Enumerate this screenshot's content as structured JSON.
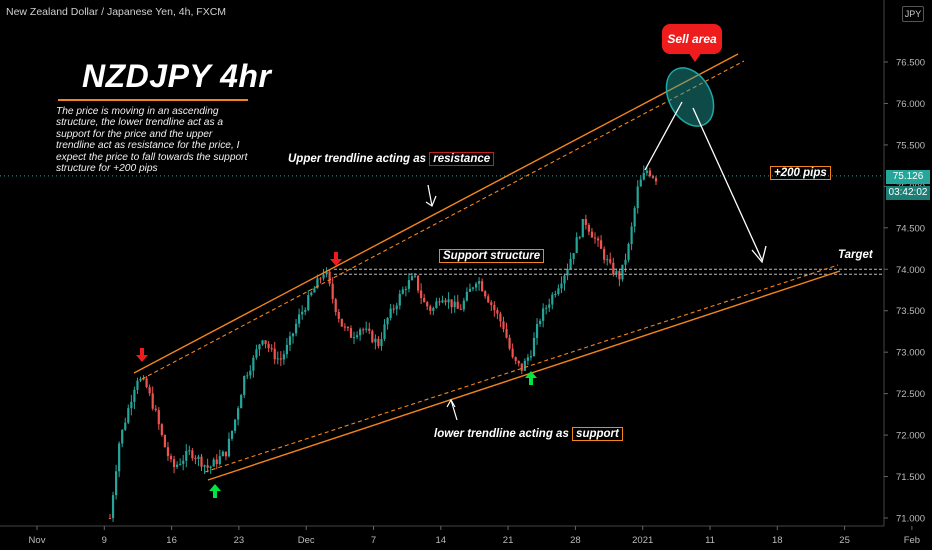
{
  "header": {
    "symbol_title": "New Zealand Dollar / Japanese Yen, 4h, FXCM",
    "currency_badge": "JPY"
  },
  "annotations": {
    "main_title": "NZDJPY 4hr",
    "description": "The price is moving in an ascending structure, the lower trendline act as a support for the price and the upper trendline act as resistance for the price, I expect the price to fall towards the support structure for +200 pips",
    "upper_prefix": "Upper trendline acting as",
    "upper_word": "resistance",
    "support_structure": "Support structure",
    "lower_prefix": "lower trendline acting as",
    "lower_word": "support",
    "target": "Target",
    "pips": "+200 pips",
    "sell_area": "Sell area"
  },
  "colors": {
    "background": "#000000",
    "up_candle": "#26a69a",
    "down_candle": "#ef5350",
    "trendline": "#f2841b",
    "sell_bubble": "#ee1c1c",
    "ellipse": "#1fa7a0",
    "down_arrow": "#ee1c1c",
    "up_arrow": "#00e640",
    "price_line": "#26a69a"
  },
  "chart_data": {
    "type": "candlestick",
    "ylim": [
      71.0,
      76.9
    ],
    "y_ticks": [
      "76.500",
      "76.000",
      "75.500",
      "75.000",
      "74.500",
      "74.000",
      "73.500",
      "73.000",
      "72.500",
      "72.000",
      "71.500",
      "71.000"
    ],
    "x_ticks": [
      "Nov",
      "9",
      "16",
      "23",
      "Dec",
      "7",
      "14",
      "21",
      "28",
      "2021",
      "11",
      "18",
      "25",
      "Feb"
    ],
    "last_price": "75.126",
    "countdown": "03:42:02",
    "close_series": [
      71.0,
      71.9,
      72.3,
      72.7,
      72.6,
      72.3,
      71.9,
      71.6,
      71.7,
      71.8,
      71.7,
      71.6,
      71.7,
      71.8,
      72.2,
      72.7,
      72.9,
      73.2,
      73.0,
      72.9,
      73.1,
      73.4,
      73.6,
      73.8,
      74.0,
      73.6,
      73.3,
      73.2,
      73.3,
      73.2,
      73.1,
      73.4,
      73.6,
      73.8,
      73.9,
      73.6,
      73.5,
      73.7,
      73.6,
      73.5,
      73.7,
      73.9,
      73.7,
      73.5,
      73.3,
      72.9,
      72.8,
      73.0,
      73.4,
      73.6,
      73.8,
      74.0,
      74.3,
      74.6,
      74.4,
      74.2,
      74.0,
      73.9,
      74.3,
      75.0,
      75.2,
      75.1
    ],
    "levels": {
      "support_structure": [
        74.0,
        73.94
      ],
      "current": 75.126
    },
    "title": "NZDJPY 4hr"
  }
}
